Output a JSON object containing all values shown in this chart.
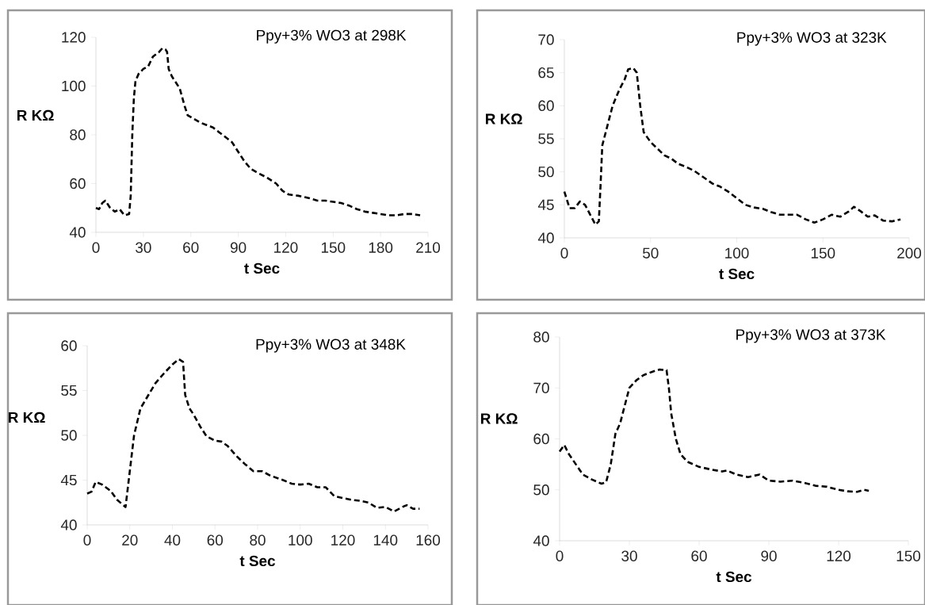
{
  "chart_data": [
    {
      "type": "line",
      "title": "Ppy+3% WO3 at 298K",
      "xlabel": "t Sec",
      "ylabel": "R KΩ",
      "color": "#000000",
      "line_style": "dashed",
      "xlim": [
        0,
        210
      ],
      "ylim": [
        40,
        120
      ],
      "xticks": [
        0,
        30,
        60,
        90,
        120,
        150,
        180,
        210
      ],
      "yticks": [
        40,
        60,
        80,
        100,
        120
      ],
      "x": [
        0,
        2,
        4,
        6,
        9,
        12,
        15,
        18,
        21,
        22,
        23,
        24,
        25,
        27,
        30,
        33,
        36,
        40,
        42,
        44,
        45,
        46,
        48,
        50,
        53,
        56,
        58,
        62,
        66,
        70,
        74,
        78,
        82,
        86,
        90,
        94,
        98,
        102,
        108,
        114,
        118,
        122,
        128,
        135,
        140,
        145,
        150,
        155,
        160,
        165,
        170,
        175,
        180,
        185,
        190,
        195,
        200,
        205
      ],
      "values": [
        50,
        49.5,
        52,
        53,
        50,
        48.5,
        49.5,
        47,
        47.5,
        55,
        80,
        95,
        102,
        105,
        107,
        108,
        112,
        114,
        115.5,
        115,
        114,
        107,
        104,
        102,
        99,
        92,
        88,
        86.5,
        85,
        84,
        83,
        81,
        79,
        77,
        73,
        69,
        66,
        64.5,
        62.5,
        60,
        57,
        55.5,
        55,
        54,
        53,
        53,
        52.5,
        52,
        51,
        49.5,
        48.5,
        48,
        47.5,
        47,
        47,
        47.5,
        47.5,
        47
      ]
    },
    {
      "type": "line",
      "title": "Ppy+3% WO3 at 323K",
      "xlabel": "t Sec",
      "ylabel": "R KΩ",
      "color": "#000000",
      "line_style": "dashed",
      "xlim": [
        0,
        200
      ],
      "ylim": [
        40,
        70
      ],
      "xticks": [
        0,
        50,
        100,
        150,
        200
      ],
      "yticks": [
        40,
        45,
        50,
        55,
        60,
        65,
        70
      ],
      "x": [
        0,
        3,
        6,
        9,
        12,
        15,
        18,
        20,
        21,
        22,
        25,
        28,
        32,
        35,
        37,
        40,
        42,
        44,
        46,
        50,
        54,
        58,
        62,
        66,
        70,
        75,
        80,
        86,
        90,
        95,
        100,
        105,
        110,
        115,
        120,
        125,
        130,
        135,
        140,
        145,
        150,
        155,
        160,
        165,
        168,
        172,
        176,
        180,
        185,
        190,
        195
      ],
      "values": [
        47,
        44.5,
        44.5,
        45.5,
        45,
        43.5,
        42,
        42.5,
        48,
        54,
        57,
        60,
        62.5,
        64,
        65.5,
        65.7,
        65,
        60,
        56,
        54.5,
        53.5,
        52.5,
        52,
        51.2,
        50.8,
        50.2,
        49.3,
        48.2,
        47.8,
        47,
        46,
        45,
        44.6,
        44.4,
        43.9,
        43.5,
        43.5,
        43.5,
        42.8,
        42.3,
        42.8,
        43.5,
        43.2,
        44,
        44.7,
        44,
        43.2,
        43.4,
        42.6,
        42.5,
        42.8
      ]
    },
    {
      "type": "line",
      "title": "Ppy+3% WO3 at 348K",
      "xlabel": "t Sec",
      "ylabel": "R KΩ",
      "color": "#000000",
      "line_style": "dashed",
      "xlim": [
        0,
        160
      ],
      "ylim": [
        40,
        60
      ],
      "xticks": [
        0,
        20,
        40,
        60,
        80,
        100,
        120,
        140,
        160
      ],
      "yticks": [
        40,
        45,
        50,
        55,
        60
      ],
      "x": [
        0,
        2,
        4,
        7,
        11,
        14,
        18,
        19,
        20,
        22,
        25,
        28,
        32,
        36,
        40,
        43,
        45,
        46,
        48,
        50,
        53,
        56,
        60,
        63,
        66,
        70,
        74,
        78,
        82,
        86,
        92,
        96,
        100,
        104,
        108,
        112,
        116,
        120,
        124,
        128,
        132,
        136,
        140,
        144,
        148,
        150,
        153,
        156
      ],
      "values": [
        43.5,
        43.7,
        44.8,
        44.5,
        43.8,
        42.8,
        42,
        44,
        46,
        50,
        53,
        54.2,
        55.8,
        56.9,
        57.9,
        58.5,
        58.2,
        54.5,
        53,
        52.3,
        51,
        49.9,
        49.4,
        49.3,
        48.8,
        47.7,
        46.8,
        46,
        46,
        45.5,
        45,
        44.6,
        44.5,
        44.6,
        44.2,
        44.2,
        43.2,
        43,
        42.8,
        42.7,
        42.5,
        41.9,
        42,
        41.5,
        42,
        42.2,
        41.8,
        41.8
      ]
    },
    {
      "type": "line",
      "title": "Ppy+3% WO3 at 373K",
      "xlabel": "t Sec",
      "ylabel": "R KΩ",
      "color": "#000000",
      "line_style": "dashed",
      "xlim": [
        0,
        150
      ],
      "ylim": [
        40,
        80
      ],
      "xticks": [
        0,
        30,
        60,
        90,
        120,
        150
      ],
      "yticks": [
        40,
        50,
        60,
        70,
        80
      ],
      "x": [
        0,
        2,
        4,
        7,
        10,
        14,
        18,
        20,
        22,
        24,
        26,
        28,
        30,
        33,
        36,
        40,
        43,
        46,
        47,
        48,
        50,
        52,
        55,
        60,
        65,
        70,
        72,
        76,
        81,
        86,
        90,
        95,
        100,
        105,
        110,
        115,
        120,
        124,
        128,
        131,
        133
      ],
      "values": [
        57.5,
        58.8,
        57,
        55,
        53,
        52,
        51.2,
        51.5,
        55,
        61,
        63,
        66.5,
        70,
        71.5,
        72.5,
        73.2,
        73.6,
        73.5,
        70,
        65,
        60,
        57,
        55.5,
        54.5,
        54,
        53.6,
        53.8,
        53,
        52.5,
        53,
        51.8,
        51.6,
        51.8,
        51.4,
        50.8,
        50.6,
        50,
        49.7,
        49.6,
        50,
        49.8
      ]
    }
  ]
}
